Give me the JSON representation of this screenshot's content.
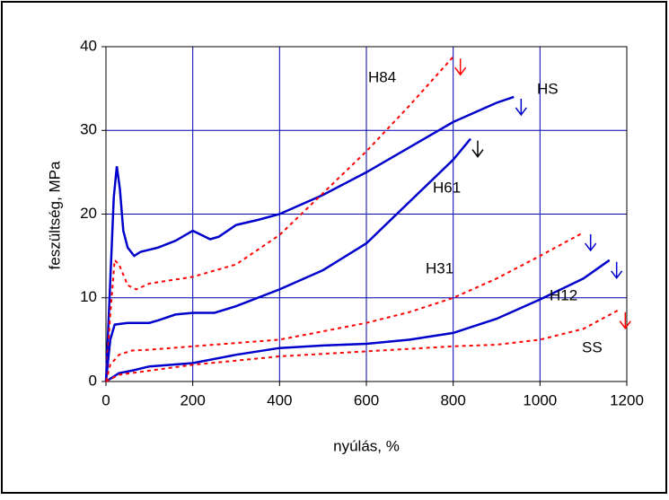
{
  "chart_data": {
    "type": "line",
    "xlabel": "nyúlás, %",
    "ylabel": "feszültség, MPa",
    "xlim": [
      0,
      1200
    ],
    "xticks": [
      0,
      200,
      400,
      600,
      800,
      1000,
      1200
    ],
    "ylim": [
      0,
      40
    ],
    "yticks": [
      0,
      10,
      20,
      30,
      40
    ],
    "grid": true,
    "series": [
      {
        "name": "HS",
        "color": "#0000cc",
        "dash": false,
        "x": [
          0,
          10,
          18,
          25,
          32,
          40,
          50,
          65,
          80,
          120,
          160,
          200,
          220,
          240,
          260,
          300,
          350,
          400,
          500,
          600,
          700,
          800,
          900,
          940
        ],
        "values": [
          0,
          12,
          22,
          25.7,
          23,
          18,
          16,
          15,
          15.5,
          16,
          16.8,
          18,
          17.5,
          17,
          17.3,
          18.7,
          19.3,
          20,
          22.3,
          25,
          28,
          31,
          33.3,
          34
        ]
      },
      {
        "name": "H84",
        "color": "#ff0000",
        "dash": true,
        "x": [
          0,
          10,
          20,
          30,
          50,
          70,
          100,
          200,
          300,
          400,
          500,
          600,
          700,
          800
        ],
        "values": [
          0,
          8,
          14.5,
          14,
          11.5,
          11,
          11.7,
          12.5,
          14,
          17.5,
          22.5,
          27.5,
          33,
          38.8
        ]
      },
      {
        "name": "H61",
        "color": "#0000cc",
        "dash": false,
        "x": [
          0,
          10,
          20,
          50,
          100,
          120,
          160,
          200,
          250,
          300,
          400,
          500,
          600,
          700,
          800,
          840
        ],
        "values": [
          0,
          5,
          6.8,
          7,
          7,
          7.3,
          8,
          8.2,
          8.2,
          9,
          11,
          13.3,
          16.5,
          21.5,
          26.5,
          29
        ]
      },
      {
        "name": "H31",
        "color": "#ff0000",
        "dash": true,
        "x": [
          0,
          10,
          30,
          60,
          100,
          200,
          300,
          400,
          500,
          600,
          700,
          800,
          900,
          1000,
          1100
        ],
        "values": [
          0,
          2,
          3.2,
          3.7,
          3.8,
          4.2,
          4.6,
          5,
          6,
          7,
          8.3,
          10,
          12.3,
          15,
          17.8
        ]
      },
      {
        "name": "H12",
        "color": "#0000cc",
        "dash": false,
        "x": [
          0,
          30,
          60,
          100,
          150,
          200,
          300,
          400,
          500,
          600,
          700,
          800,
          900,
          1000,
          1100,
          1160
        ],
        "values": [
          0,
          1,
          1.3,
          1.8,
          2,
          2.2,
          3.2,
          4,
          4.3,
          4.5,
          5,
          5.8,
          7.5,
          9.8,
          12.3,
          14.5
        ]
      },
      {
        "name": "SS",
        "color": "#ff0000",
        "dash": true,
        "x": [
          0,
          30,
          100,
          200,
          300,
          400,
          600,
          800,
          900,
          1000,
          1100,
          1180
        ],
        "values": [
          0,
          0.8,
          1.3,
          2,
          2.5,
          3,
          3.6,
          4.2,
          4.4,
          5,
          6.3,
          8.5
        ]
      }
    ]
  }
}
